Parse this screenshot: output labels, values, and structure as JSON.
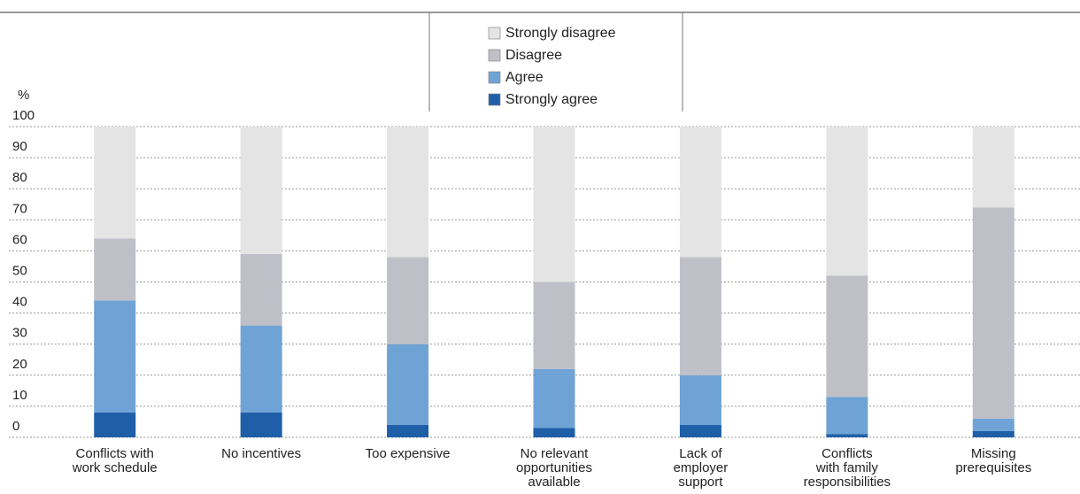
{
  "chart_data": {
    "type": "stacked_bar",
    "y_label": "%",
    "categories": [
      [
        "Conflicts with",
        "work schedule"
      ],
      [
        "No incentives"
      ],
      [
        "Too expensive"
      ],
      [
        "No relevant",
        "opportunities",
        "available"
      ],
      [
        "Lack of",
        "employer",
        "support"
      ],
      [
        "Conflicts",
        "with family",
        "responsibilities"
      ],
      [
        "Missing",
        "prerequisites"
      ]
    ],
    "series": [
      {
        "name": "Strongly agree",
        "color": "#1f5fa8",
        "values": [
          8,
          8,
          4,
          3,
          4,
          1,
          2
        ]
      },
      {
        "name": "Agree",
        "color": "#6fa3d6",
        "values": [
          36,
          28,
          26,
          19,
          16,
          12,
          4
        ]
      },
      {
        "name": "Disagree",
        "color": "#bfc0c7",
        "values": [
          20,
          23,
          28,
          28,
          38,
          39,
          68
        ]
      },
      {
        "name": "Strongly disagree",
        "color": "#e4e4e4",
        "values": [
          36,
          41,
          42,
          50,
          42,
          48,
          26
        ]
      }
    ],
    "ylim": [
      0,
      100
    ],
    "yticks": [
      0,
      10,
      20,
      30,
      40,
      50,
      60,
      70,
      80,
      90,
      100
    ],
    "grid": true
  }
}
